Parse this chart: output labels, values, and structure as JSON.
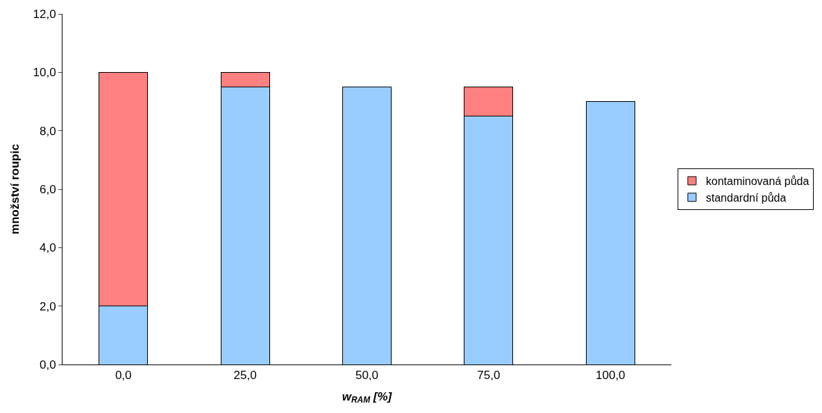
{
  "chart_data": {
    "type": "bar",
    "stacked": true,
    "xlabel": "w$_{RAM}$ [%]",
    "ylabel": "množství roupic",
    "categories": [
      "0,0",
      "25,0",
      "50,0",
      "75,0",
      "100,0"
    ],
    "series": [
      {
        "name": "standardní půda",
        "color": "#99ccff",
        "values": [
          2.0,
          9.5,
          9.5,
          8.5,
          9.0
        ]
      },
      {
        "name": "kontaminovaná půda",
        "color": "#ff8080",
        "values": [
          8.0,
          0.5,
          null,
          1.0,
          null
        ]
      }
    ],
    "ylim": [
      0,
      12
    ],
    "yticks": [
      {
        "value": 0,
        "label": "0,0"
      },
      {
        "value": 2,
        "label": "2,0"
      },
      {
        "value": 4,
        "label": "4,0"
      },
      {
        "value": 6,
        "label": "6,0"
      },
      {
        "value": 8,
        "label": "8,0"
      },
      {
        "value": 10,
        "label": "10,0"
      },
      {
        "value": 12,
        "label": "12,0"
      }
    ],
    "grid": false,
    "legend": "right"
  }
}
